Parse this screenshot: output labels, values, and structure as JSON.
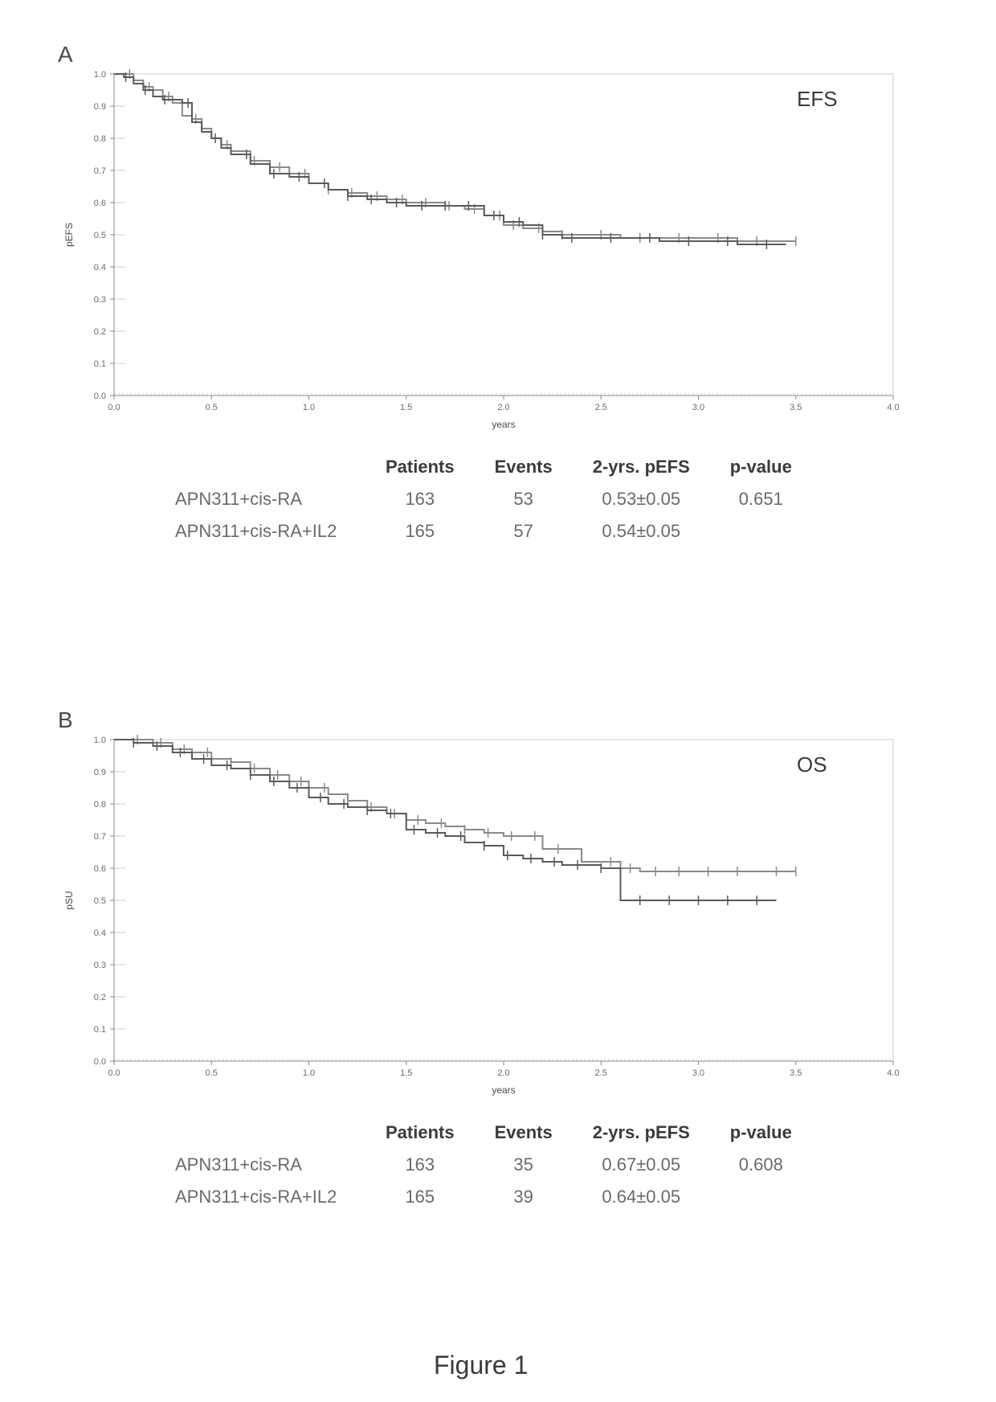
{
  "figure_caption": "Figure 1",
  "panelA": {
    "label": "A",
    "chart": {
      "type": "kaplan-meier",
      "title_inside": "EFS",
      "xlabel": "years",
      "ylabel": "pEFS",
      "xlim": [
        0.0,
        4.0
      ],
      "ylim": [
        0.0,
        1.0
      ],
      "xtick_step": 0.5,
      "ytick_step": 0.1,
      "xticks": [
        "0.0",
        "0.5",
        "1.0",
        "1.5",
        "2.0",
        "2.5",
        "3.0",
        "3.5",
        "4.0"
      ],
      "yticks": [
        "0.0",
        "0.1",
        "0.2",
        "0.3",
        "0.4",
        "0.5",
        "0.6",
        "0.7",
        "0.8",
        "0.9",
        "1.0"
      ],
      "background_color": "#ffffff",
      "border_color": "#cfcfcf",
      "axis_color": "#8a8a8a",
      "tick_font_size": 11,
      "label_font_size": 12,
      "title_font_size": 26,
      "line_width": 2,
      "tick_mark_size": 6,
      "series": [
        {
          "name": "APN311+cis-RA",
          "color": "#8a8a8a",
          "points": [
            [
              0.0,
              1.0
            ],
            [
              0.05,
              1.0
            ],
            [
              0.1,
              0.98
            ],
            [
              0.15,
              0.96
            ],
            [
              0.2,
              0.95
            ],
            [
              0.25,
              0.93
            ],
            [
              0.3,
              0.91
            ],
            [
              0.35,
              0.87
            ],
            [
              0.4,
              0.86
            ],
            [
              0.45,
              0.83
            ],
            [
              0.5,
              0.8
            ],
            [
              0.55,
              0.78
            ],
            [
              0.6,
              0.76
            ],
            [
              0.7,
              0.73
            ],
            [
              0.8,
              0.71
            ],
            [
              0.9,
              0.69
            ],
            [
              1.0,
              0.66
            ],
            [
              1.1,
              0.64
            ],
            [
              1.2,
              0.63
            ],
            [
              1.3,
              0.62
            ],
            [
              1.4,
              0.61
            ],
            [
              1.5,
              0.6
            ],
            [
              1.6,
              0.6
            ],
            [
              1.7,
              0.59
            ],
            [
              1.8,
              0.58
            ],
            [
              1.9,
              0.56
            ],
            [
              2.0,
              0.53
            ],
            [
              2.1,
              0.52
            ],
            [
              2.2,
              0.51
            ],
            [
              2.3,
              0.5
            ],
            [
              2.4,
              0.5
            ],
            [
              2.6,
              0.49
            ],
            [
              2.8,
              0.49
            ],
            [
              3.0,
              0.49
            ],
            [
              3.2,
              0.48
            ],
            [
              3.5,
              0.48
            ]
          ],
          "censor_x": [
            0.08,
            0.18,
            0.28,
            0.42,
            0.58,
            0.72,
            0.85,
            0.98,
            1.1,
            1.22,
            1.35,
            1.48,
            1.6,
            1.72,
            1.85,
            1.98,
            2.05,
            2.18,
            2.3,
            2.5,
            2.7,
            2.9,
            3.1,
            3.3,
            3.5
          ]
        },
        {
          "name": "APN311+cis-RA+IL2",
          "color": "#5a5a5a",
          "points": [
            [
              0.0,
              1.0
            ],
            [
              0.05,
              0.99
            ],
            [
              0.1,
              0.97
            ],
            [
              0.15,
              0.95
            ],
            [
              0.2,
              0.93
            ],
            [
              0.25,
              0.92
            ],
            [
              0.3,
              0.92
            ],
            [
              0.35,
              0.91
            ],
            [
              0.4,
              0.85
            ],
            [
              0.45,
              0.82
            ],
            [
              0.5,
              0.8
            ],
            [
              0.55,
              0.77
            ],
            [
              0.6,
              0.75
            ],
            [
              0.7,
              0.72
            ],
            [
              0.8,
              0.69
            ],
            [
              0.9,
              0.68
            ],
            [
              1.0,
              0.66
            ],
            [
              1.1,
              0.64
            ],
            [
              1.2,
              0.62
            ],
            [
              1.3,
              0.61
            ],
            [
              1.4,
              0.6
            ],
            [
              1.5,
              0.59
            ],
            [
              1.6,
              0.59
            ],
            [
              1.7,
              0.59
            ],
            [
              1.8,
              0.59
            ],
            [
              1.9,
              0.56
            ],
            [
              2.0,
              0.54
            ],
            [
              2.1,
              0.53
            ],
            [
              2.2,
              0.5
            ],
            [
              2.3,
              0.49
            ],
            [
              2.4,
              0.49
            ],
            [
              2.6,
              0.49
            ],
            [
              2.8,
              0.48
            ],
            [
              3.0,
              0.48
            ],
            [
              3.2,
              0.47
            ],
            [
              3.45,
              0.47
            ]
          ],
          "censor_x": [
            0.06,
            0.16,
            0.26,
            0.38,
            0.52,
            0.68,
            0.82,
            0.95,
            1.08,
            1.2,
            1.32,
            1.45,
            1.58,
            1.7,
            1.82,
            1.95,
            2.08,
            2.2,
            2.35,
            2.55,
            2.75,
            2.95,
            3.15,
            3.35
          ]
        }
      ]
    },
    "table": {
      "columns": [
        "",
        "Patients",
        "Events",
        "2-yrs. pEFS",
        "p-value"
      ],
      "rows": [
        [
          "APN311+cis-RA",
          "163",
          "53",
          "0.53±0.05",
          "0.651"
        ],
        [
          "APN311+cis-RA+IL2",
          "165",
          "57",
          "0.54±0.05",
          ""
        ]
      ]
    }
  },
  "panelB": {
    "label": "B",
    "chart": {
      "type": "kaplan-meier",
      "title_inside": "OS",
      "xlabel": "years",
      "ylabel": "pSU",
      "xlim": [
        0.0,
        4.0
      ],
      "ylim": [
        0.0,
        1.0
      ],
      "xtick_step": 0.5,
      "ytick_step": 0.1,
      "xticks": [
        "0.0",
        "0.5",
        "1.0",
        "1.5",
        "2.0",
        "2.5",
        "3.0",
        "3.5",
        "4.0"
      ],
      "yticks": [
        "0.0",
        "0.1",
        "0.2",
        "0.3",
        "0.4",
        "0.5",
        "0.6",
        "0.7",
        "0.8",
        "0.9",
        "1.0"
      ],
      "background_color": "#ffffff",
      "border_color": "#cfcfcf",
      "axis_color": "#8a8a8a",
      "tick_font_size": 11,
      "label_font_size": 12,
      "title_font_size": 26,
      "line_width": 2,
      "tick_mark_size": 6,
      "series": [
        {
          "name": "APN311+cis-RA",
          "color": "#8a8a8a",
          "points": [
            [
              0.0,
              1.0
            ],
            [
              0.1,
              1.0
            ],
            [
              0.2,
              0.99
            ],
            [
              0.3,
              0.97
            ],
            [
              0.4,
              0.96
            ],
            [
              0.5,
              0.94
            ],
            [
              0.6,
              0.93
            ],
            [
              0.7,
              0.91
            ],
            [
              0.8,
              0.89
            ],
            [
              0.9,
              0.87
            ],
            [
              1.0,
              0.85
            ],
            [
              1.1,
              0.83
            ],
            [
              1.2,
              0.81
            ],
            [
              1.3,
              0.79
            ],
            [
              1.4,
              0.77
            ],
            [
              1.5,
              0.75
            ],
            [
              1.6,
              0.74
            ],
            [
              1.7,
              0.73
            ],
            [
              1.8,
              0.72
            ],
            [
              1.9,
              0.71
            ],
            [
              2.0,
              0.7
            ],
            [
              2.1,
              0.7
            ],
            [
              2.2,
              0.66
            ],
            [
              2.3,
              0.66
            ],
            [
              2.4,
              0.62
            ],
            [
              2.5,
              0.62
            ],
            [
              2.6,
              0.6
            ],
            [
              2.7,
              0.59
            ],
            [
              2.8,
              0.59
            ],
            [
              2.9,
              0.59
            ],
            [
              3.0,
              0.59
            ],
            [
              3.1,
              0.59
            ],
            [
              3.2,
              0.59
            ],
            [
              3.5,
              0.59
            ]
          ],
          "censor_x": [
            0.12,
            0.24,
            0.36,
            0.48,
            0.6,
            0.72,
            0.84,
            0.96,
            1.08,
            1.2,
            1.32,
            1.44,
            1.56,
            1.68,
            1.8,
            1.92,
            2.04,
            2.16,
            2.28,
            2.55,
            2.65,
            2.78,
            2.9,
            3.05,
            3.2,
            3.4,
            3.5
          ]
        },
        {
          "name": "APN311+cis-RA+IL2",
          "color": "#5a5a5a",
          "points": [
            [
              0.0,
              1.0
            ],
            [
              0.1,
              0.99
            ],
            [
              0.2,
              0.98
            ],
            [
              0.3,
              0.96
            ],
            [
              0.4,
              0.94
            ],
            [
              0.5,
              0.92
            ],
            [
              0.6,
              0.91
            ],
            [
              0.7,
              0.89
            ],
            [
              0.8,
              0.87
            ],
            [
              0.9,
              0.85
            ],
            [
              1.0,
              0.82
            ],
            [
              1.1,
              0.8
            ],
            [
              1.2,
              0.79
            ],
            [
              1.3,
              0.78
            ],
            [
              1.4,
              0.77
            ],
            [
              1.5,
              0.72
            ],
            [
              1.6,
              0.71
            ],
            [
              1.7,
              0.7
            ],
            [
              1.8,
              0.68
            ],
            [
              1.9,
              0.67
            ],
            [
              2.0,
              0.64
            ],
            [
              2.1,
              0.63
            ],
            [
              2.2,
              0.62
            ],
            [
              2.3,
              0.61
            ],
            [
              2.4,
              0.61
            ],
            [
              2.5,
              0.6
            ],
            [
              2.6,
              0.5
            ],
            [
              2.7,
              0.5
            ],
            [
              2.8,
              0.5
            ],
            [
              2.9,
              0.5
            ],
            [
              3.0,
              0.5
            ],
            [
              3.1,
              0.5
            ],
            [
              3.2,
              0.5
            ],
            [
              3.4,
              0.5
            ]
          ],
          "censor_x": [
            0.1,
            0.22,
            0.34,
            0.46,
            0.58,
            0.7,
            0.82,
            0.94,
            1.06,
            1.18,
            1.3,
            1.42,
            1.54,
            1.66,
            1.78,
            1.9,
            2.02,
            2.14,
            2.26,
            2.38,
            2.5,
            2.7,
            2.85,
            3.0,
            3.15,
            3.3
          ]
        }
      ]
    },
    "table": {
      "columns": [
        "",
        "Patients",
        "Events",
        "2-yrs. pEFS",
        "p-value"
      ],
      "rows": [
        [
          "APN311+cis-RA",
          "163",
          "35",
          "0.67±0.05",
          "0.608"
        ],
        [
          "APN311+cis-RA+IL2",
          "165",
          "39",
          "0.64±0.05",
          ""
        ]
      ]
    }
  }
}
